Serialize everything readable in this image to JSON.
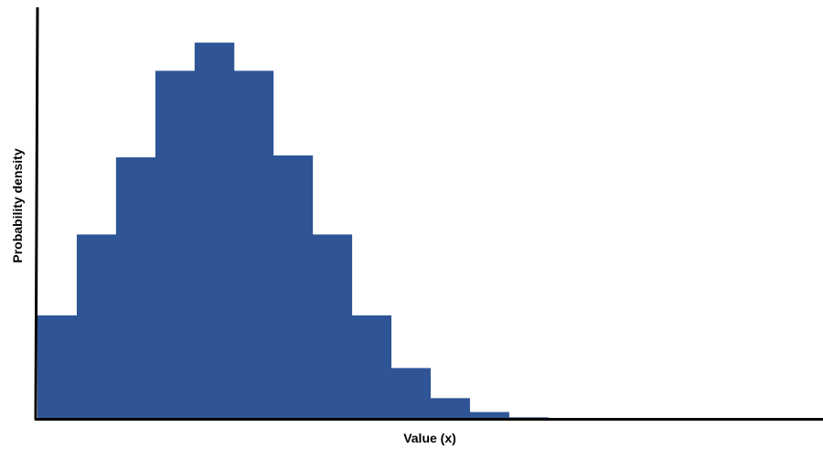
{
  "chart_data": {
    "type": "bar",
    "title": "",
    "xlabel": "Value (x)",
    "ylabel": "Probability density",
    "bar_color": "#2F5597",
    "axis_color": "#000000",
    "bin_count": 13,
    "values": [
      0.275,
      0.49,
      0.695,
      0.925,
      1.0,
      0.925,
      0.7,
      0.49,
      0.275,
      0.135,
      0.055,
      0.018,
      0.004
    ],
    "ylim": [
      0,
      1.05
    ],
    "bins_span": 20,
    "grid": false,
    "ticks": false,
    "legend": "none"
  }
}
